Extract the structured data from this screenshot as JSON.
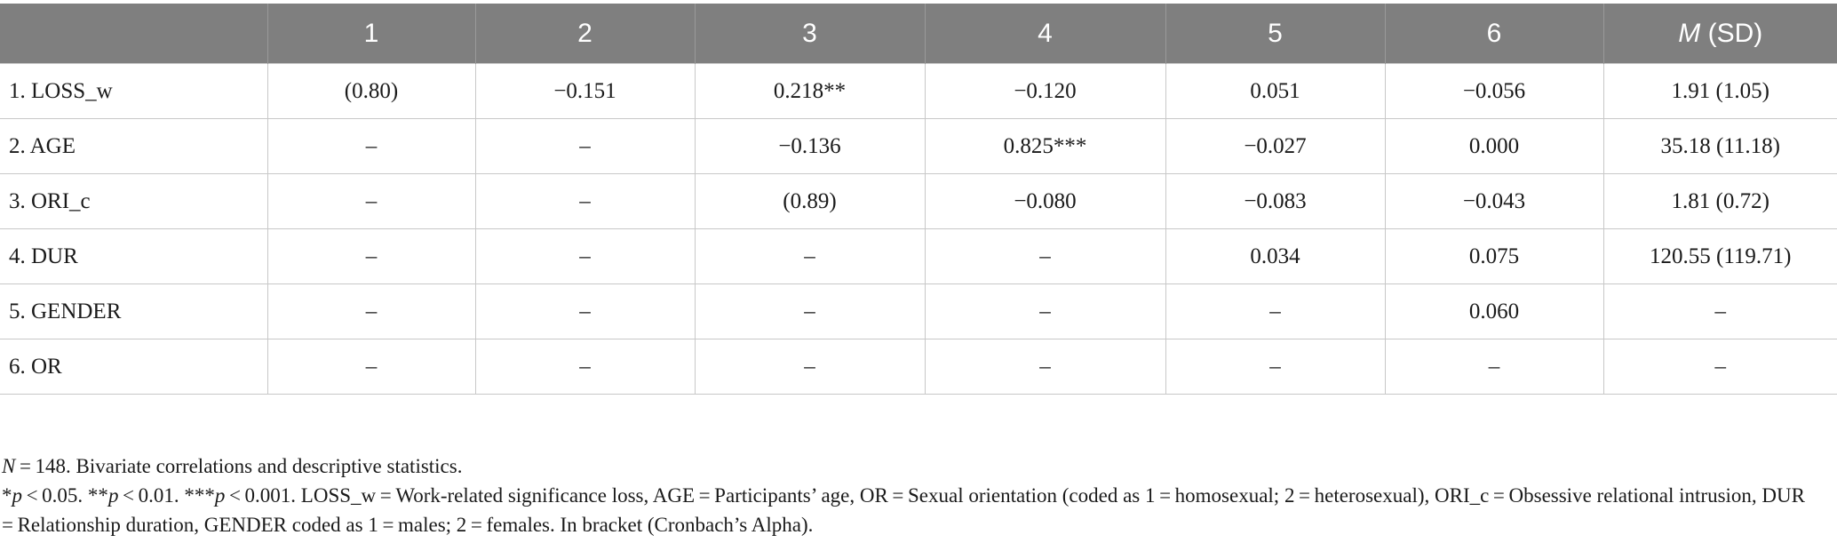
{
  "table": {
    "header": {
      "corner": "",
      "columns": [
        "1",
        "2",
        "3",
        "4",
        "5",
        "6"
      ],
      "last_column_italic": "M",
      "last_column_rest": " (SD)"
    },
    "rows": [
      {
        "label": "1. LOSS_w",
        "cells": [
          "(0.80)",
          "−0.151",
          "0.218**",
          "−0.120",
          "0.051",
          "−0.056",
          "1.91 (1.05)"
        ]
      },
      {
        "label": "2. AGE",
        "cells": [
          "–",
          "–",
          "−0.136",
          "0.825***",
          "−0.027",
          "0.000",
          "35.18 (11.18)"
        ]
      },
      {
        "label": "3. ORI_c",
        "cells": [
          "–",
          "–",
          "(0.89)",
          "−0.080",
          "−0.083",
          "−0.043",
          "1.81 (0.72)"
        ]
      },
      {
        "label": "4. DUR",
        "cells": [
          "–",
          "–",
          "–",
          "–",
          "0.034",
          "0.075",
          "120.55 (119.71)"
        ]
      },
      {
        "label": "5. GENDER",
        "cells": [
          "–",
          "–",
          "–",
          "–",
          "–",
          "0.060",
          "–"
        ]
      },
      {
        "label": "6. OR",
        "cells": [
          "–",
          "–",
          "–",
          "–",
          "–",
          "–",
          "–"
        ]
      }
    ]
  },
  "notes": {
    "line1_italic": "N",
    "line1_rest": " = 148. Bivariate correlations and descriptive statistics.",
    "line2_parts": [
      {
        "t": "*",
        "i": false
      },
      {
        "t": "p",
        "i": true
      },
      {
        "t": " < 0.05. **",
        "i": false
      },
      {
        "t": "p",
        "i": true
      },
      {
        "t": " < 0.01. ***",
        "i": false
      },
      {
        "t": "p",
        "i": true
      },
      {
        "t": " < 0.001. LOSS_w = Work-related significance loss, AGE = Participants’ age, OR = Sexual orientation (coded as 1 = homosexual; 2 = heterosexual), ORI_c = Obsessive relational intrusion, DUR = Relationship duration, GENDER coded as 1 = males; 2 = females. In bracket (Cronbach’s Alpha).",
        "i": false
      }
    ]
  }
}
